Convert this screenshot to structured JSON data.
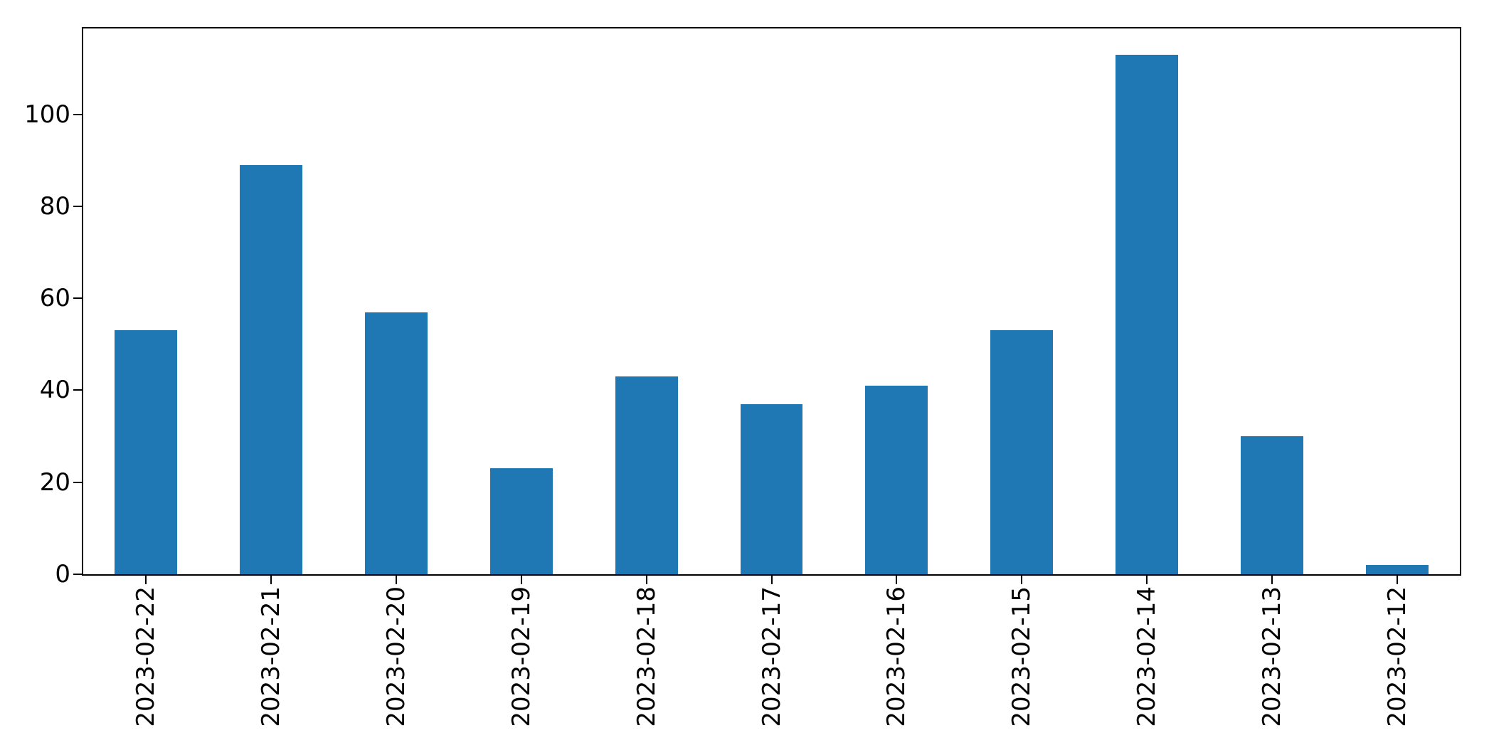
{
  "figure": {
    "background_color": "#ffffff",
    "spine_color": "#000000",
    "tick_color": "#000000",
    "text_color": "#000000"
  },
  "chart_data": {
    "type": "bar",
    "title": "",
    "xlabel": "",
    "ylabel": "",
    "categories": [
      "2023-02-22",
      "2023-02-21",
      "2023-02-20",
      "2023-02-19",
      "2023-02-18",
      "2023-02-17",
      "2023-02-16",
      "2023-02-15",
      "2023-02-14",
      "2023-02-13",
      "2023-02-12"
    ],
    "values": [
      53,
      89,
      57,
      23,
      43,
      37,
      41,
      53,
      113,
      30,
      2
    ],
    "bar_color": "#1f77b4",
    "y_ticks": [
      0,
      20,
      40,
      60,
      80,
      100
    ],
    "ylim": [
      0,
      118.65
    ],
    "x_tick_rotation_deg": 90,
    "grid": false,
    "legend_position": "none"
  }
}
